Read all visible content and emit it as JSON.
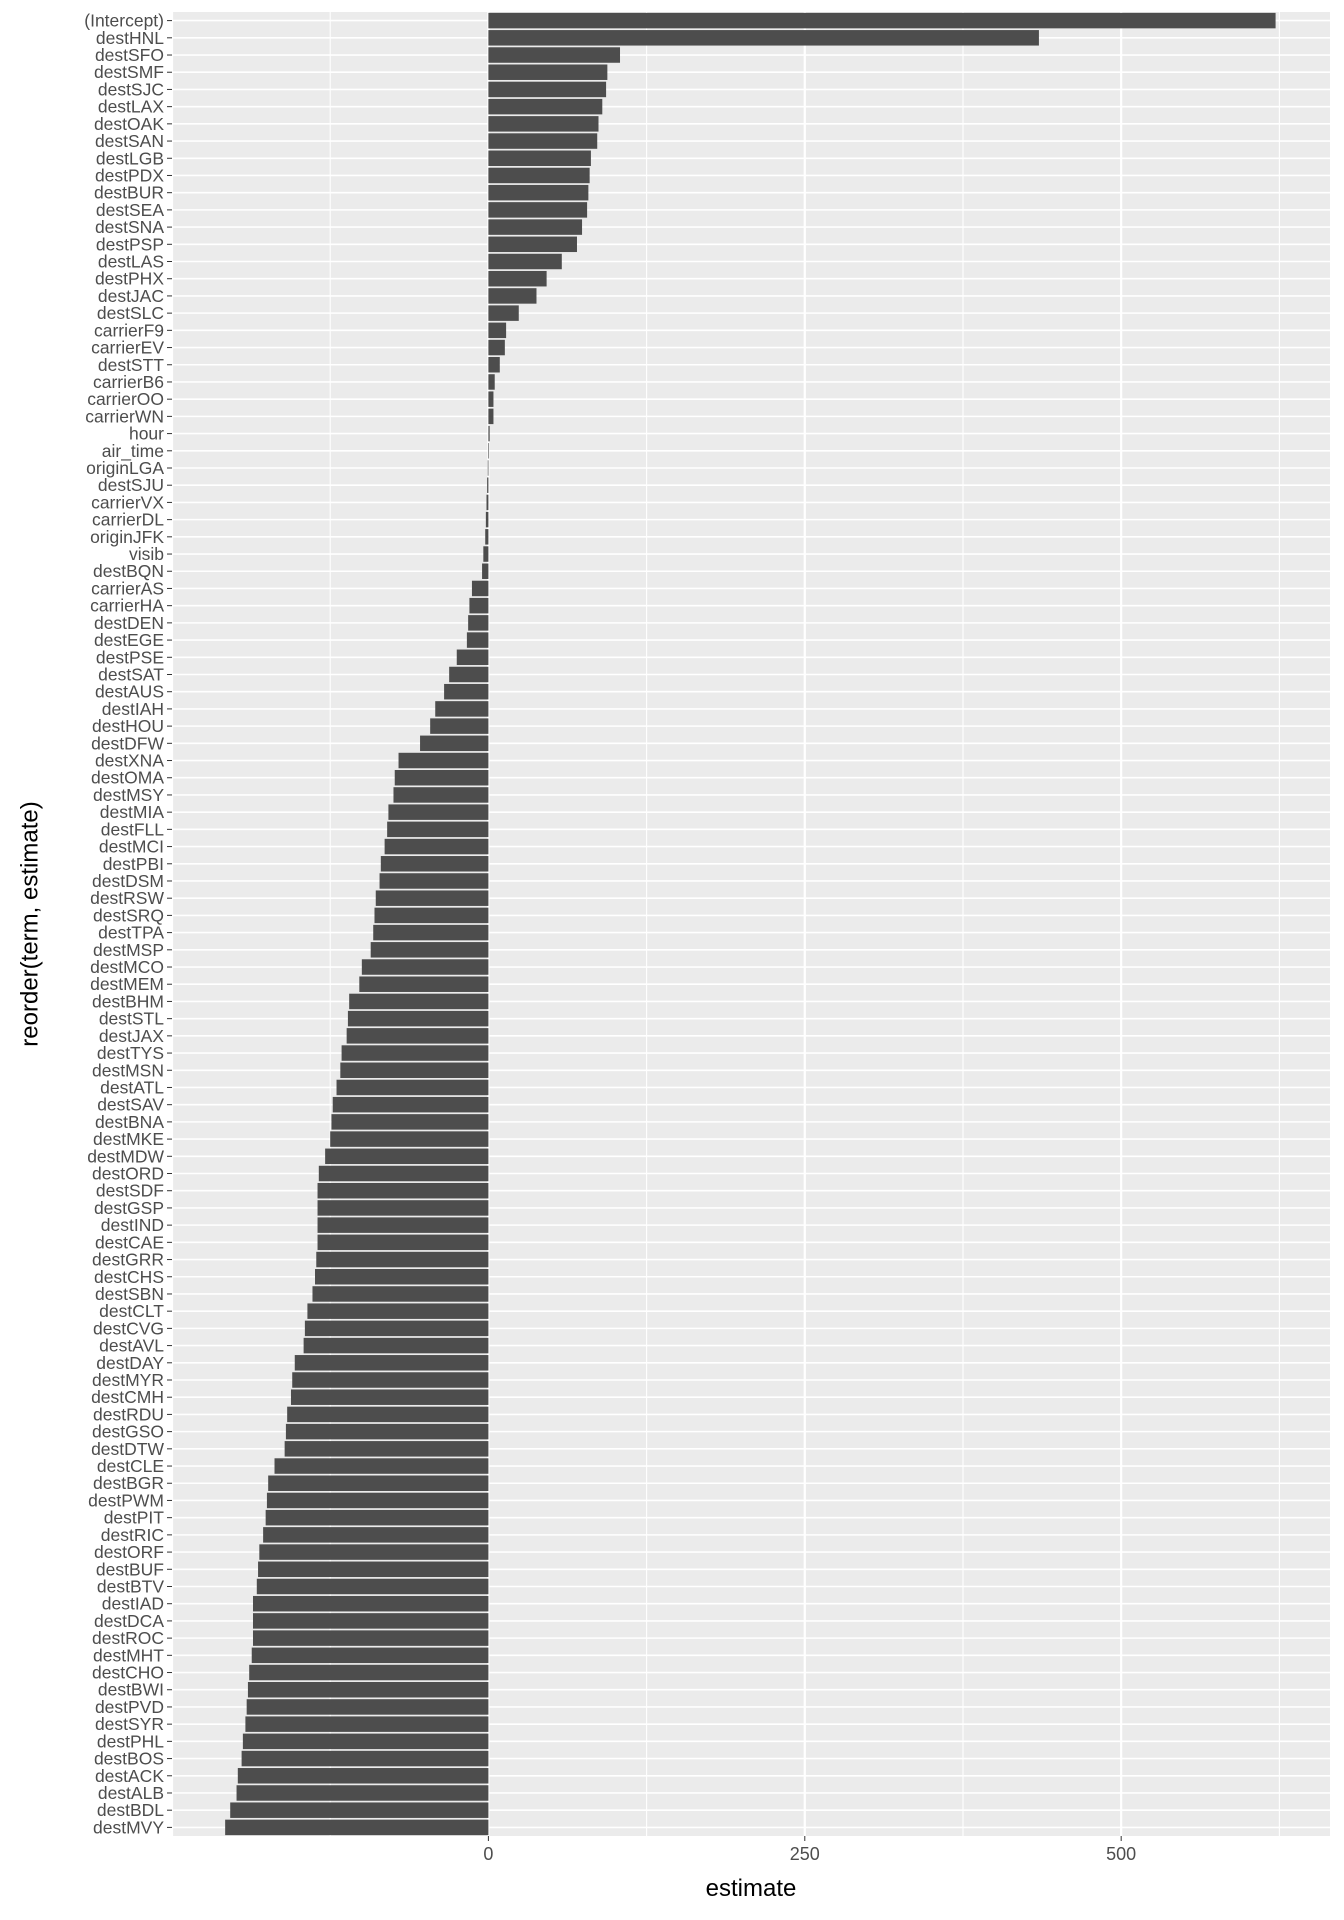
{
  "chart_data": {
    "type": "bar",
    "orientation": "horizontal",
    "xlabel": "estimate",
    "ylabel": "reorder(term, estimate)",
    "xlim": [
      -250,
      665
    ],
    "xticks": [
      0,
      250,
      500
    ],
    "grid": true,
    "colors": {
      "panel": "#EBEBEB",
      "grid": "#FFFFFF",
      "bar": "#4D4D4D",
      "text": "#4D4D4D"
    },
    "categories": [
      "(Intercept)",
      "destHNL",
      "destSFO",
      "destSMF",
      "destSJC",
      "destLAX",
      "destOAK",
      "destSAN",
      "destLGB",
      "destPDX",
      "destBUR",
      "destSEA",
      "destSNA",
      "destPSP",
      "destLAS",
      "destPHX",
      "destJAC",
      "destSLC",
      "carrierF9",
      "carrierEV",
      "destSTT",
      "carrierB6",
      "carrierOO",
      "carrierWN",
      "hour",
      "air_time",
      "originLGA",
      "destSJU",
      "carrierVX",
      "carrierDL",
      "originJFK",
      "visib",
      "destBQN",
      "carrierAS",
      "carrierHA",
      "destDEN",
      "destEGE",
      "destPSE",
      "destSAT",
      "destAUS",
      "destIAH",
      "destHOU",
      "destDFW",
      "destXNA",
      "destOMA",
      "destMSY",
      "destMIA",
      "destFLL",
      "destMCI",
      "destPBI",
      "destDSM",
      "destRSW",
      "destSRQ",
      "destTPA",
      "destMSP",
      "destMCO",
      "destMEM",
      "destBHM",
      "destSTL",
      "destJAX",
      "destTYS",
      "destMSN",
      "destATL",
      "destSAV",
      "destBNA",
      "destMKE",
      "destMDW",
      "destORD",
      "destSDF",
      "destGSP",
      "destIND",
      "destCAE",
      "destGRR",
      "destCHS",
      "destSBN",
      "destCLT",
      "destCVG",
      "destAVL",
      "destDAY",
      "destMYR",
      "destCMH",
      "destRDU",
      "destGSO",
      "destDTW",
      "destCLE",
      "destBGR",
      "destPWM",
      "destPIT",
      "destRIC",
      "destORF",
      "destBUF",
      "destBTV",
      "destIAD",
      "destDCA",
      "destROC",
      "destMHT",
      "destCHO",
      "destBWI",
      "destPVD",
      "destSYR",
      "destPHL",
      "destBOS",
      "destACK",
      "destALB",
      "destBDL",
      "destMVY"
    ],
    "values": [
      622,
      435,
      104,
      94,
      93,
      90,
      87,
      86,
      81,
      80,
      79,
      78,
      74,
      70,
      58,
      46,
      38,
      24,
      14,
      13,
      9,
      5,
      4,
      4,
      1,
      0.5,
      -0.5,
      -1,
      -1.5,
      -2,
      -2.5,
      -4,
      -5,
      -13,
      -15,
      -16,
      -17,
      -25,
      -31,
      -35,
      -42,
      -46,
      -54,
      -71,
      -74,
      -75,
      -79,
      -80,
      -82,
      -85,
      -86,
      -89,
      -90,
      -91,
      -93,
      -100,
      -102,
      -110,
      -111,
      -112,
      -116,
      -117,
      -120,
      -123,
      -124,
      -125,
      -129,
      -134,
      -135,
      -135,
      -135,
      -135,
      -136,
      -137,
      -139,
      -143,
      -145,
      -146,
      -153,
      -155,
      -156,
      -159,
      -160,
      -161,
      -169,
      -174,
      -175,
      -176,
      -178,
      -181,
      -182,
      -183,
      -186,
      -186,
      -186,
      -187,
      -189,
      -190,
      -191,
      -192,
      -194,
      -195,
      -198,
      -199,
      -204,
      -208
    ]
  }
}
